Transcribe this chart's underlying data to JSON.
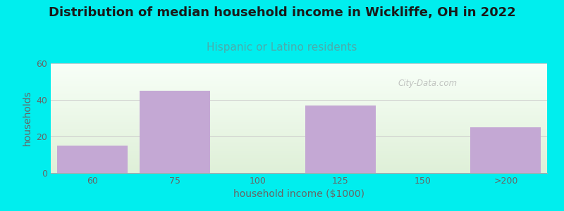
{
  "title": "Distribution of median household income in Wickliffe, OH in 2022",
  "subtitle": "Hispanic or Latino residents",
  "xlabel": "household income ($1000)",
  "ylabel": "households",
  "background_color": "#00EEEE",
  "bar_color": "#C4A8D4",
  "categories": [
    "60",
    "75",
    "100",
    "125",
    "150",
    ">200"
  ],
  "values": [
    15,
    45,
    0,
    37,
    0,
    25
  ],
  "bar_centers": [
    1,
    2,
    3,
    4,
    5,
    6
  ],
  "ylim": [
    0,
    60
  ],
  "yticks": [
    0,
    20,
    40,
    60
  ],
  "grid_color": "#cccccc",
  "title_fontsize": 13,
  "subtitle_fontsize": 11,
  "subtitle_color": "#4aacac",
  "axis_label_fontsize": 10,
  "tick_fontsize": 9,
  "tick_color": "#666666",
  "watermark_text": "City-Data.com",
  "plot_bg_top": "#dff0d8",
  "plot_bg_bottom": "#f8fff8"
}
